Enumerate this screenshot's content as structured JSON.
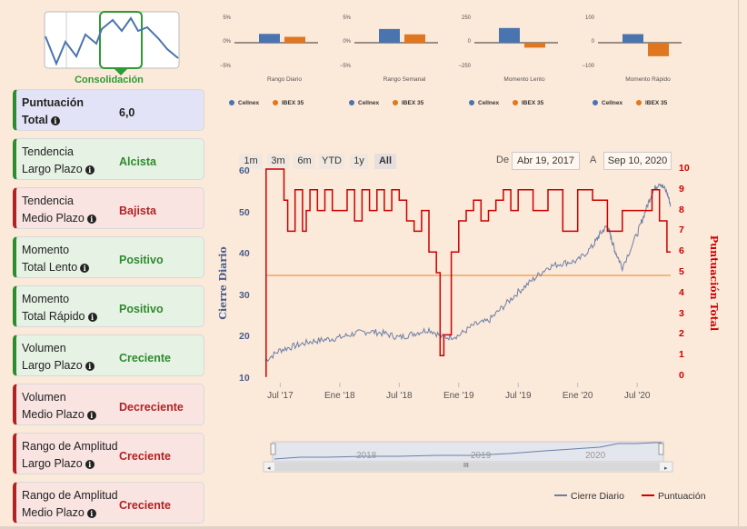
{
  "logo": {
    "caption": "Consolidación"
  },
  "cards": [
    {
      "line1": "Puntuación",
      "line2": "Total",
      "value": "6,0",
      "style": "blue"
    },
    {
      "line1": "Tendencia",
      "line2": "Largo Plazo",
      "value": "Alcista",
      "style": "green"
    },
    {
      "line1": "Tendencia",
      "line2": "Medio Plazo",
      "value": "Bajista",
      "style": "red"
    },
    {
      "line1": "Momento",
      "line2": "Total Lento",
      "value": "Positivo",
      "style": "green"
    },
    {
      "line1": "Momento",
      "line2": "Total Rápido",
      "value": "Positivo",
      "style": "green"
    },
    {
      "line1": "Volumen",
      "line2": "Largo Plazo",
      "value": "Creciente",
      "style": "green"
    },
    {
      "line1": "Volumen",
      "line2": "Medio Plazo",
      "value": "Decreciente",
      "style": "red"
    },
    {
      "line1": "Rango de Amplitud",
      "line2": "Largo Plazo",
      "value": "Creciente",
      "style": "red"
    },
    {
      "line1": "Rango de Amplitud",
      "line2": "Medio Plazo",
      "value": "Creciente",
      "style": "red"
    }
  ],
  "info_icon": "i",
  "mini_charts": [
    {
      "caption": "Rango Diario",
      "ticks": [
        "5%",
        "0%",
        "−5%"
      ],
      "legend": [
        "Cellnex",
        "IBEX 35"
      ]
    },
    {
      "caption": "Rango Semanal",
      "ticks": [
        "5%",
        "0%",
        "−5%"
      ],
      "legend": [
        "Cellnex",
        "IBEX 35"
      ]
    },
    {
      "caption": "Momento Lento",
      "ticks": [
        "250",
        "0",
        "−250"
      ],
      "legend": [
        "Cellnex",
        "IBEX 35"
      ]
    },
    {
      "caption": "Momento Rápido",
      "ticks": [
        "100",
        "0",
        "−100"
      ],
      "legend": [
        "Cellnex",
        "IBEX 35"
      ]
    }
  ],
  "colors": {
    "cellnex": "#4a74b0",
    "ibex": "#e0761f",
    "cierre": "#6b7fa6",
    "puntuacion": "#cc0000",
    "green": "#2e8b2e",
    "red": "#b22222"
  },
  "zoom_buttons": [
    "1m",
    "3m",
    "6m",
    "YTD",
    "1y",
    "All"
  ],
  "range": {
    "from_label": "De",
    "from": "Abr 19, 2017",
    "to_label": "A",
    "to": "Sep 10, 2020"
  },
  "navigator": {
    "years": [
      "2018",
      "2019",
      "2020"
    ],
    "scroll_mark": "III"
  },
  "legend": {
    "cierre": "Cierre Diario",
    "puntuacion": "Puntuación"
  },
  "chart_data": [
    {
      "type": "bar",
      "title": "Rango Diario",
      "categories": [
        "Cellnex",
        "IBEX 35"
      ],
      "values": [
        1.8,
        1.2
      ],
      "ylim": [
        -5,
        5
      ],
      "yticks": [
        "5%",
        "0%",
        "−5%"
      ]
    },
    {
      "type": "bar",
      "title": "Rango Semanal",
      "categories": [
        "Cellnex",
        "IBEX 35"
      ],
      "values": [
        2.8,
        1.7
      ],
      "ylim": [
        -5,
        5
      ],
      "yticks": [
        "5%",
        "0%",
        "−5%"
      ]
    },
    {
      "type": "bar",
      "title": "Momento Lento",
      "categories": [
        "Cellnex",
        "IBEX 35"
      ],
      "values": [
        150,
        -50
      ],
      "ylim": [
        -250,
        250
      ],
      "yticks": [
        "250",
        "0",
        "−250"
      ]
    },
    {
      "type": "bar",
      "title": "Momento Rápido",
      "categories": [
        "Cellnex",
        "IBEX 35"
      ],
      "values": [
        35,
        -55
      ],
      "ylim": [
        -100,
        100
      ],
      "yticks": [
        "100",
        "0",
        "−100"
      ]
    },
    {
      "type": "line",
      "title": "",
      "xlabel": "",
      "ylabel": "Cierre Diario",
      "y2label": "Puntuación Total",
      "ylim": [
        10,
        60
      ],
      "y2lim": [
        0,
        10
      ],
      "yticks": [
        10,
        20,
        30,
        40,
        50,
        60
      ],
      "y2ticks": [
        0,
        1,
        2,
        3,
        4,
        5,
        6,
        7,
        8,
        9,
        10
      ],
      "xticks": [
        "Jul '17",
        "Ene '18",
        "Jul '18",
        "Ene '19",
        "Jul '19",
        "Ene '20",
        "Jul '20"
      ],
      "xtick_pos": [
        0.2,
        1,
        1.8,
        2.6,
        3.4,
        4.2,
        5.0
      ],
      "reference_level": 35,
      "series": [
        {
          "name": "Cierre Diario",
          "axis": "left",
          "x": [
            0,
            0.2,
            0.4,
            0.6,
            0.8,
            1.0,
            1.2,
            1.4,
            1.6,
            1.8,
            2.0,
            2.2,
            2.4,
            2.6,
            2.8,
            3.0,
            3.2,
            3.4,
            3.6,
            3.8,
            4.0,
            4.2,
            4.4,
            4.5,
            4.6,
            4.65,
            4.7,
            4.8,
            5.0,
            5.1,
            5.2,
            5.3,
            5.4,
            5.45
          ],
          "values": [
            14.5,
            17,
            18,
            19,
            19.5,
            20,
            21,
            21.5,
            21,
            20,
            21,
            22,
            20,
            20.5,
            23,
            24,
            27.5,
            31,
            34,
            37,
            38,
            38.5,
            42,
            45,
            47,
            44,
            41,
            37,
            45,
            50,
            55,
            57.5,
            55,
            52
          ]
        },
        {
          "name": "Puntuación",
          "axis": "right",
          "x": [
            0,
            0.01,
            0.1,
            0.2,
            0.25,
            0.3,
            0.4,
            0.5,
            0.55,
            0.6,
            0.7,
            0.8,
            0.9,
            1.0,
            1.1,
            1.2,
            1.3,
            1.4,
            1.5,
            1.6,
            1.7,
            1.8,
            1.9,
            2.0,
            2.1,
            2.2,
            2.3,
            2.35,
            2.4,
            2.5,
            2.6,
            2.7,
            2.8,
            2.9,
            3.0,
            3.1,
            3.2,
            3.3,
            3.4,
            3.6,
            3.8,
            4.0,
            4.2,
            4.4,
            4.6,
            4.8,
            5.0,
            5.2,
            5.3,
            5.4,
            5.45
          ],
          "values": [
            0,
            10,
            10,
            10,
            8.5,
            7,
            9,
            7,
            8,
            9,
            8,
            9,
            8,
            8,
            9,
            7.5,
            9,
            8,
            9,
            8,
            9,
            8.5,
            7.5,
            7,
            8,
            6,
            5,
            1,
            2,
            6,
            7.5,
            8,
            8.5,
            7.5,
            8,
            8.5,
            9,
            8,
            9,
            8,
            9,
            7,
            9,
            8.5,
            7,
            8,
            8,
            9,
            7.5,
            6,
            6
          ]
        }
      ]
    }
  ]
}
